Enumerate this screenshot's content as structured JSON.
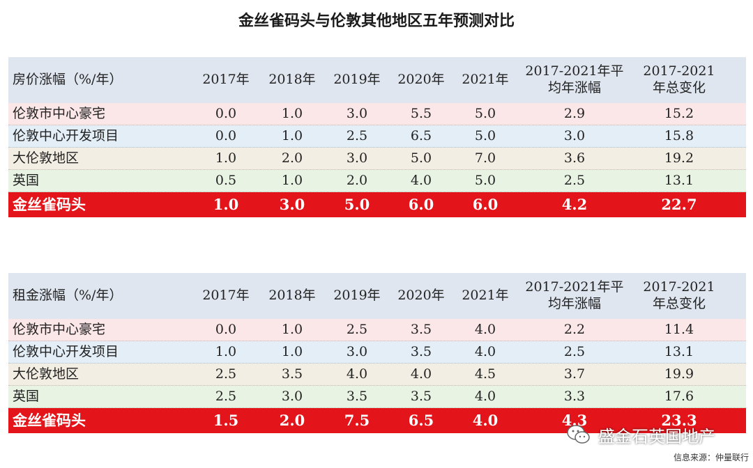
{
  "title": "金丝雀码头与伦敦其他地区五年预测对比",
  "colors": {
    "header_bg": "#dfe6f0",
    "row_pink": "#fbe6e8",
    "row_blue": "#e3eef7",
    "row_beige": "#f3eee3",
    "row_green": "#e9f3e4",
    "highlight": "#e3151b"
  },
  "tables": [
    {
      "header": {
        "label": "房价涨幅（%/年）",
        "years": [
          "2017年",
          "2018年",
          "2019年",
          "2020年",
          "2021年"
        ],
        "avg": "2017-2021年平均年涨幅",
        "total": "2017-2021年总变化"
      },
      "rows": [
        {
          "name": "伦敦市中心豪宅",
          "values": [
            "0.0",
            "1.0",
            "3.0",
            "5.5",
            "5.0"
          ],
          "avg": "2.9",
          "total": "15.2"
        },
        {
          "name": "伦敦中心开发项目",
          "values": [
            "0.0",
            "1.0",
            "2.5",
            "6.5",
            "5.0"
          ],
          "avg": "3.0",
          "total": "15.8"
        },
        {
          "name": "大伦敦地区",
          "values": [
            "1.0",
            "2.0",
            "3.0",
            "5.0",
            "7.0"
          ],
          "avg": "3.6",
          "total": "19.2"
        },
        {
          "name": "英国",
          "values": [
            "0.5",
            "1.0",
            "2.0",
            "4.0",
            "5.0"
          ],
          "avg": "2.5",
          "total": "13.1"
        },
        {
          "name": "金丝雀码头",
          "values": [
            "1.0",
            "3.0",
            "5.0",
            "6.0",
            "6.0"
          ],
          "avg": "4.2",
          "total": "22.7"
        }
      ]
    },
    {
      "header": {
        "label": "租金涨幅（%/年）",
        "years": [
          "2017年",
          "2018年",
          "2019年",
          "2020年",
          "2021年"
        ],
        "avg": "2017-2021年平均年涨幅",
        "total": "2017-2021年总变化"
      },
      "rows": [
        {
          "name": "伦敦市中心豪宅",
          "values": [
            "0.0",
            "1.0",
            "2.5",
            "3.5",
            "4.0"
          ],
          "avg": "2.2",
          "total": "11.4"
        },
        {
          "name": "伦敦中心开发项目",
          "values": [
            "1.0",
            "1.0",
            "3.0",
            "3.5",
            "4.0"
          ],
          "avg": "2.5",
          "total": "13.1"
        },
        {
          "name": "大伦敦地区",
          "values": [
            "2.5",
            "3.5",
            "4.0",
            "4.0",
            "4.5"
          ],
          "avg": "3.7",
          "total": "19.9"
        },
        {
          "name": "英国",
          "values": [
            "2.5",
            "3.0",
            "3.5",
            "3.5",
            "4.0"
          ],
          "avg": "3.3",
          "total": "17.6"
        },
        {
          "name": "金丝雀码头",
          "values": [
            "1.5",
            "2.0",
            "7.5",
            "6.5",
            "4.0"
          ],
          "avg": "4.3",
          "total": "23.3"
        }
      ]
    }
  ],
  "watermark": {
    "text": "盛金石英国地产",
    "icon": "wechat-icon"
  },
  "source": "信息来源：仲量联行"
}
